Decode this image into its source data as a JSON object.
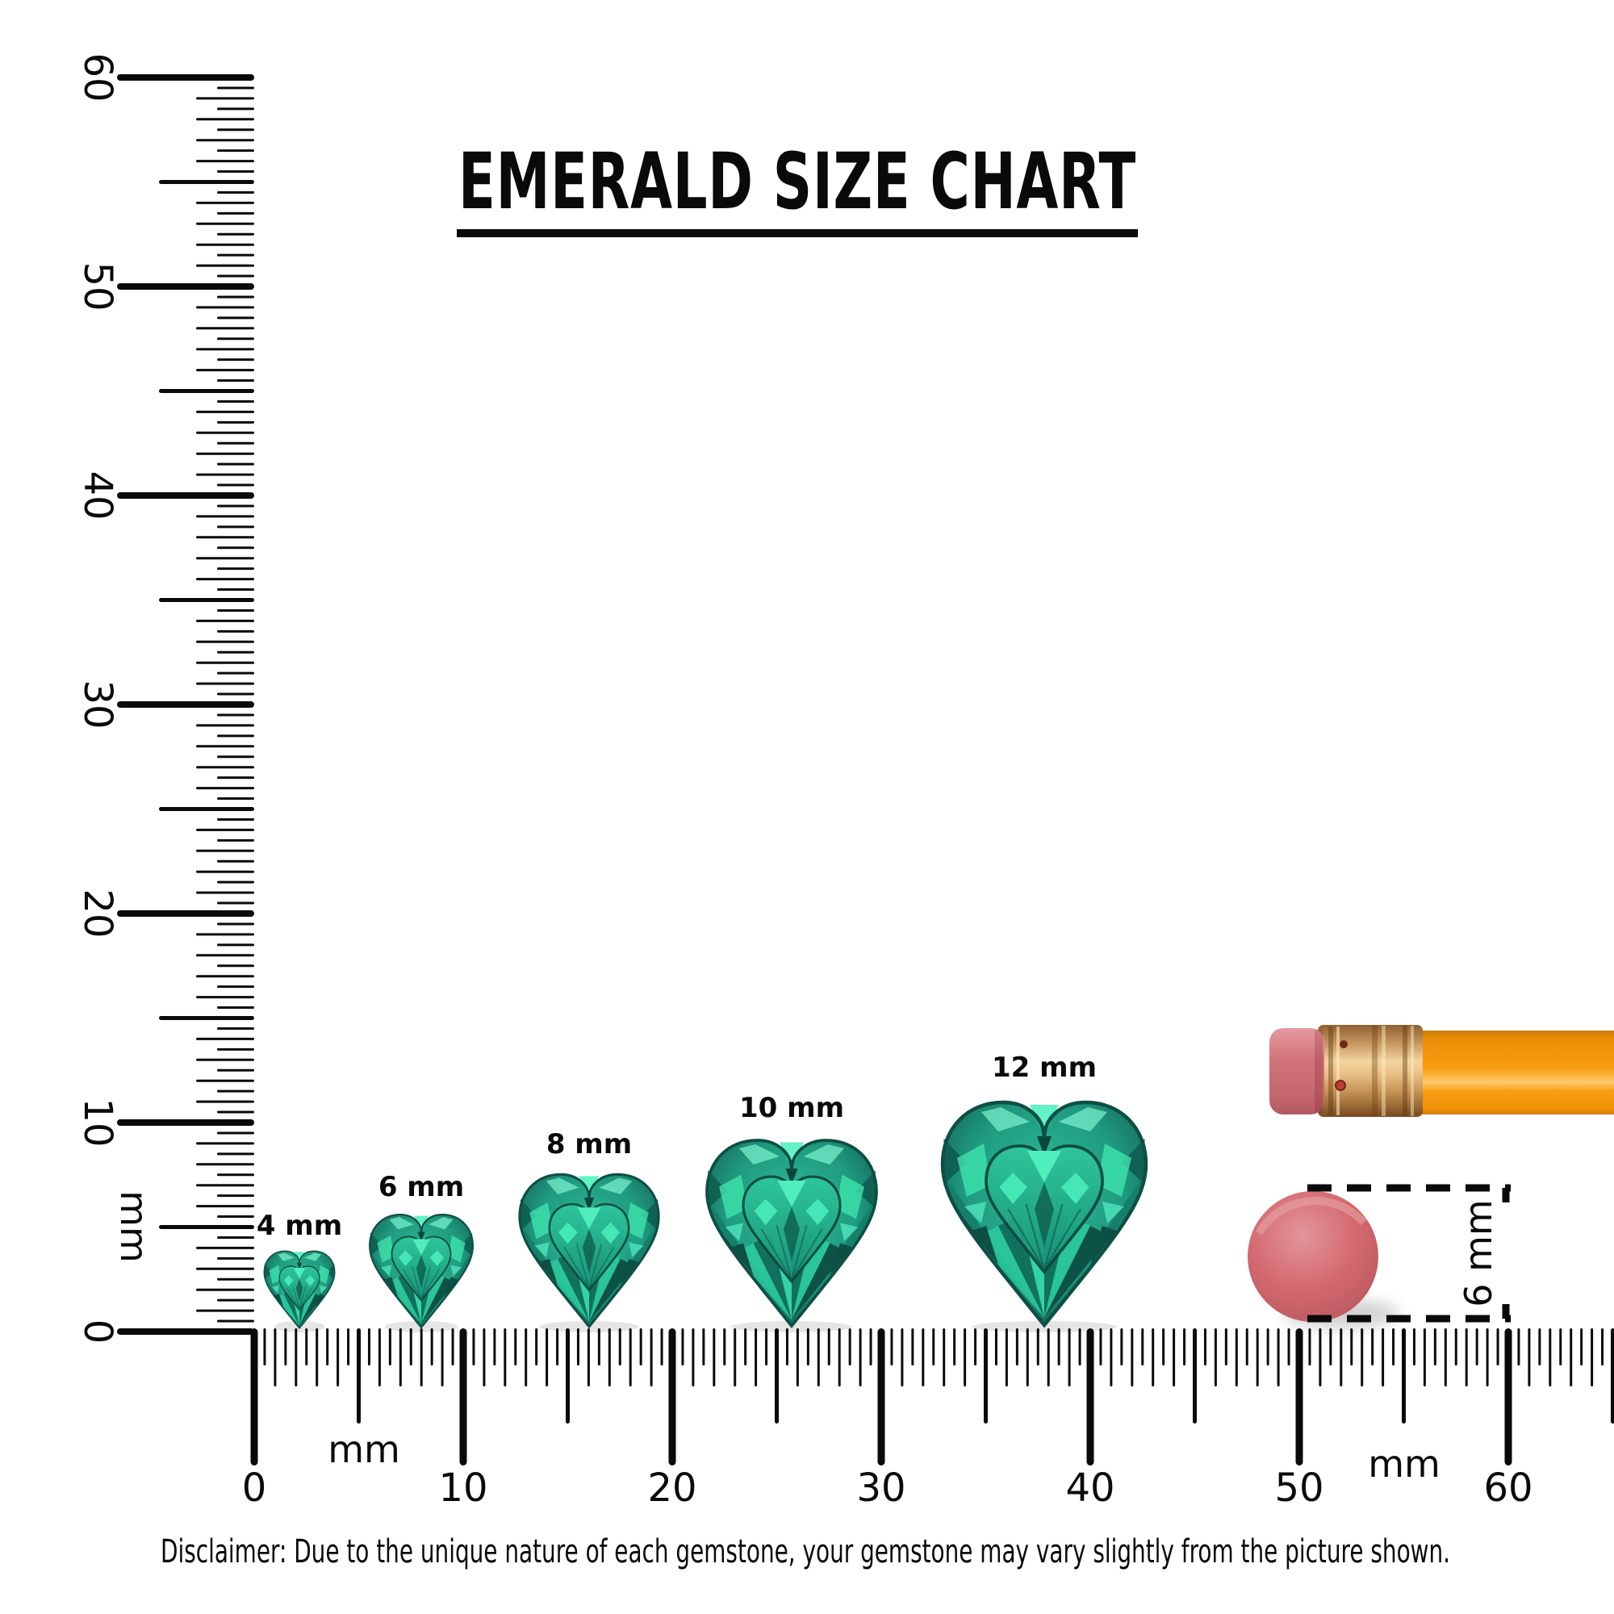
{
  "title": "EMERALD SIZE CHART",
  "rulers": {
    "left": {
      "unit": "mm",
      "numbers": [
        "0",
        "10",
        "20",
        "30",
        "40",
        "50",
        "60"
      ]
    },
    "bottom": {
      "unit_left": "mm",
      "unit_right": "mm",
      "numbers": [
        "0",
        "10",
        "20",
        "30",
        "40",
        "50",
        "60"
      ]
    }
  },
  "gems": [
    {
      "label": "4 mm",
      "mm": 4
    },
    {
      "label": "6 mm",
      "mm": 6
    },
    {
      "label": "8 mm",
      "mm": 8
    },
    {
      "label": "10 mm",
      "mm": 10
    },
    {
      "label": "12 mm",
      "mm": 12
    }
  ],
  "reference": {
    "pencil": "pencil-with-eraser",
    "disc": "round-eraser",
    "label": "6 mm"
  },
  "disclaimer": "Disclaimer: Due to the unique nature of each gemstone, your gemstone may vary slightly from the picture shown.",
  "colors": {
    "ruler_black": "#0a0a0a",
    "gem_mid": "#1f9b80",
    "gem_bright": "#3fe3ad",
    "gem_dark": "#0f5b4e",
    "pencil_orange": "#f89d10",
    "ferrule_gold": "#e7bd83",
    "eraser_pink": "#d4747c"
  }
}
